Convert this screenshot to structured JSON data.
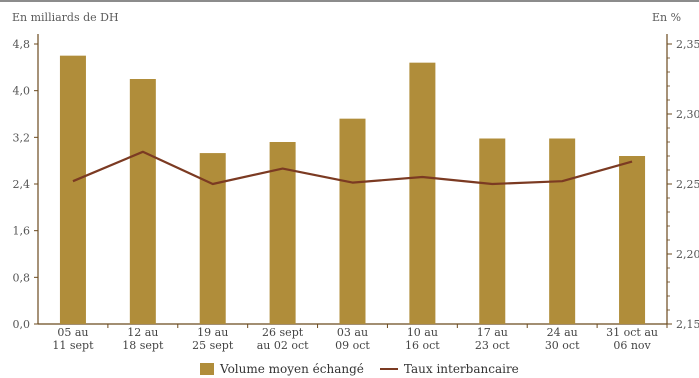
{
  "chart_data": {
    "type": "bar",
    "categories": [
      [
        "05 au",
        "11 sept"
      ],
      [
        "12 au",
        "18 sept"
      ],
      [
        "19 au",
        "25 sept"
      ],
      [
        "26 sept",
        "au 02 oct"
      ],
      [
        "03 au",
        "09 oct"
      ],
      [
        "10 au",
        "16 oct"
      ],
      [
        "17 au",
        "23 oct"
      ],
      [
        "24 au",
        "30 oct"
      ],
      [
        "31 oct au",
        "06 nov"
      ]
    ],
    "series": [
      {
        "name": "Volume moyen échangé",
        "type": "bar",
        "axis": "left",
        "values": [
          4.6,
          4.2,
          2.93,
          3.12,
          3.52,
          4.48,
          3.18,
          3.18,
          2.88
        ]
      },
      {
        "name": "Taux interbancaire",
        "type": "line",
        "axis": "right",
        "values": [
          2.252,
          2.273,
          2.25,
          2.261,
          2.251,
          2.255,
          2.25,
          2.252,
          2.266
        ]
      }
    ],
    "ylabel_left": "En milliards de DH",
    "ylabel_right": "En %",
    "ylim_left": [
      0,
      4.8
    ],
    "yticks_left": [
      "0,0",
      "0,8",
      "1,6",
      "2,4",
      "3,2",
      "4,0",
      "4,8"
    ],
    "ylim_right": [
      2.15,
      2.35
    ],
    "yticks_right": [
      "2,15",
      "2,20",
      "2,25",
      "2,30",
      "2,35"
    ],
    "colors": {
      "bar": "#b08d3a",
      "line": "#7b3a22",
      "axis": "#6b4a1e"
    },
    "legend_position": "bottom"
  }
}
